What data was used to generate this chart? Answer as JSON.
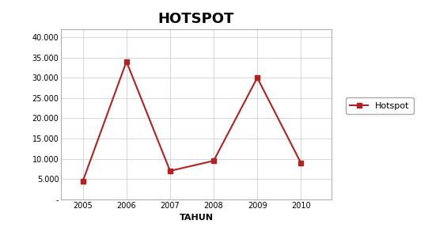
{
  "title": "HOTSPOT",
  "xlabel": "TAHUN",
  "years": [
    2005,
    2006,
    2007,
    2008,
    2009,
    2010
  ],
  "values": [
    4500,
    34000,
    7000,
    9500,
    30000,
    9000
  ],
  "line_color": "#B22222",
  "marker": "s",
  "marker_size": 5,
  "legend_label": "Hotspot",
  "ylim": [
    0,
    42000
  ],
  "yticks": [
    0,
    5000,
    10000,
    15000,
    20000,
    25000,
    30000,
    35000,
    40000
  ],
  "ytick_labels": [
    "-",
    "5.000",
    "10.000",
    "15.000",
    "20.000",
    "25.000",
    "30.000",
    "35.000",
    "40.000"
  ],
  "background_color": "#ffffff",
  "plot_bg_color": "#ffffff",
  "grid_color": "#d0d0d0",
  "title_fontsize": 13,
  "axis_label_fontsize": 8,
  "tick_fontsize": 7,
  "legend_fontsize": 8
}
